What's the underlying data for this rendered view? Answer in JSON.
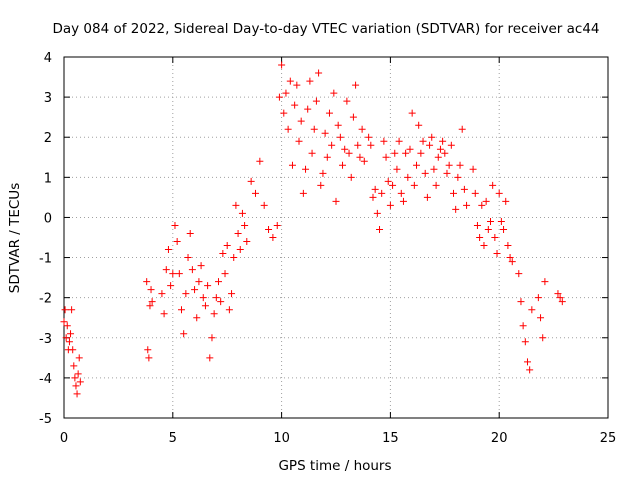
{
  "chart_data": {
    "type": "scatter",
    "title": "Day 084 of 2022, Sidereal Day-to-day VTEC variation (SDTVAR) for receiver ac44",
    "xlabel": "GPS time / hours",
    "ylabel": "SDTVAR / TECUs",
    "xlim": [
      0,
      25
    ],
    "ylim": [
      -5,
      4
    ],
    "xticks": [
      0,
      5,
      10,
      15,
      20,
      25
    ],
    "yticks": [
      -5,
      -4,
      -3,
      -2,
      -1,
      0,
      1,
      2,
      3,
      4
    ],
    "grid": true,
    "marker": "+",
    "color": "#ff0000",
    "series": [
      {
        "name": "SDTVAR",
        "x": [
          0.0,
          0.05,
          0.1,
          0.15,
          0.2,
          0.25,
          0.3,
          0.35,
          0.4,
          0.45,
          0.5,
          0.55,
          0.6,
          0.65,
          0.7,
          0.75,
          3.8,
          3.85,
          3.9,
          3.95,
          4.0,
          4.05,
          4.5,
          4.6,
          4.7,
          4.8,
          4.9,
          5.0,
          5.1,
          5.2,
          5.3,
          5.4,
          5.5,
          5.6,
          5.7,
          5.8,
          5.9,
          6.0,
          6.1,
          6.2,
          6.3,
          6.4,
          6.5,
          6.6,
          6.7,
          6.8,
          6.9,
          7.0,
          7.1,
          7.2,
          7.3,
          7.4,
          7.5,
          7.6,
          7.7,
          7.8,
          7.9,
          8.0,
          8.1,
          8.2,
          8.3,
          8.4,
          8.6,
          8.8,
          9.0,
          9.2,
          9.4,
          9.6,
          9.8,
          9.9,
          10.0,
          10.1,
          10.2,
          10.3,
          10.4,
          10.5,
          10.6,
          10.7,
          10.8,
          10.9,
          11.0,
          11.1,
          11.2,
          11.3,
          11.4,
          11.5,
          11.6,
          11.7,
          11.8,
          11.9,
          12.0,
          12.1,
          12.2,
          12.3,
          12.4,
          12.5,
          12.6,
          12.7,
          12.8,
          12.9,
          13.0,
          13.1,
          13.2,
          13.3,
          13.4,
          13.5,
          13.6,
          13.7,
          13.8,
          14.0,
          14.1,
          14.2,
          14.3,
          14.4,
          14.5,
          14.6,
          14.7,
          14.8,
          14.9,
          15.0,
          15.1,
          15.2,
          15.3,
          15.4,
          15.5,
          15.6,
          15.7,
          15.8,
          15.9,
          16.0,
          16.1,
          16.2,
          16.3,
          16.4,
          16.5,
          16.6,
          16.7,
          16.8,
          16.9,
          17.0,
          17.1,
          17.2,
          17.3,
          17.4,
          17.5,
          17.6,
          17.7,
          17.8,
          17.9,
          18.0,
          18.1,
          18.2,
          18.3,
          18.4,
          18.5,
          18.8,
          18.9,
          19.0,
          19.1,
          19.2,
          19.3,
          19.4,
          19.5,
          19.6,
          19.7,
          19.8,
          19.9,
          20.0,
          20.1,
          20.2,
          20.3,
          20.4,
          20.5,
          20.6,
          20.9,
          21.0,
          21.1,
          21.2,
          21.3,
          21.4,
          21.5,
          21.8,
          21.9,
          22.0,
          22.1,
          22.7,
          22.8,
          22.9
        ],
        "y": [
          -2.6,
          -2.3,
          -3.0,
          -2.7,
          -3.3,
          -3.1,
          -2.9,
          -2.3,
          -3.3,
          -3.7,
          -4.0,
          -4.2,
          -4.4,
          -3.9,
          -3.5,
          -4.1,
          -1.6,
          -3.3,
          -3.5,
          -2.2,
          -1.8,
          -2.1,
          -1.9,
          -2.4,
          -1.3,
          -0.8,
          -1.7,
          -1.4,
          -0.2,
          -0.6,
          -1.4,
          -2.3,
          -2.9,
          -1.9,
          -1.0,
          -0.4,
          -1.3,
          -1.8,
          -2.5,
          -1.6,
          -1.2,
          -2.0,
          -2.2,
          -1.7,
          -3.5,
          -3.0,
          -2.4,
          -2.0,
          -1.6,
          -2.1,
          -0.9,
          -1.4,
          -0.7,
          -2.3,
          -1.9,
          -1.0,
          0.3,
          -0.4,
          -0.8,
          0.1,
          -0.2,
          -0.6,
          0.9,
          0.6,
          1.4,
          0.3,
          -0.3,
          -0.5,
          -0.2,
          3.0,
          3.8,
          2.6,
          3.1,
          2.2,
          3.4,
          1.3,
          2.8,
          3.3,
          1.9,
          2.4,
          0.6,
          1.2,
          2.7,
          3.4,
          1.6,
          2.2,
          2.9,
          3.6,
          0.8,
          1.1,
          2.1,
          1.5,
          2.6,
          1.8,
          3.1,
          0.4,
          2.3,
          2.0,
          1.3,
          1.7,
          2.9,
          1.6,
          1.0,
          2.5,
          3.3,
          1.8,
          1.5,
          2.2,
          1.4,
          2.0,
          1.8,
          0.5,
          0.7,
          0.1,
          -0.3,
          0.6,
          1.9,
          1.5,
          0.9,
          0.3,
          0.8,
          1.6,
          1.2,
          1.9,
          0.6,
          0.4,
          1.6,
          1.0,
          1.7,
          2.6,
          0.8,
          1.3,
          2.3,
          1.6,
          1.9,
          1.1,
          0.5,
          1.8,
          2.0,
          1.2,
          0.8,
          1.5,
          1.7,
          1.9,
          1.6,
          1.1,
          1.3,
          1.8,
          0.6,
          0.2,
          1.0,
          1.3,
          2.2,
          0.7,
          0.3,
          1.2,
          0.6,
          -0.2,
          -0.5,
          0.3,
          -0.7,
          0.4,
          -0.3,
          -0.1,
          0.8,
          -0.5,
          -0.9,
          0.6,
          -0.1,
          -0.3,
          0.4,
          -0.7,
          -1.0,
          -1.1,
          -1.4,
          -2.1,
          -2.7,
          -3.1,
          -3.6,
          -3.8,
          -2.3,
          -2.0,
          -2.5,
          -3.0,
          -1.6,
          -1.9,
          -2.0,
          -2.1
        ]
      }
    ]
  }
}
